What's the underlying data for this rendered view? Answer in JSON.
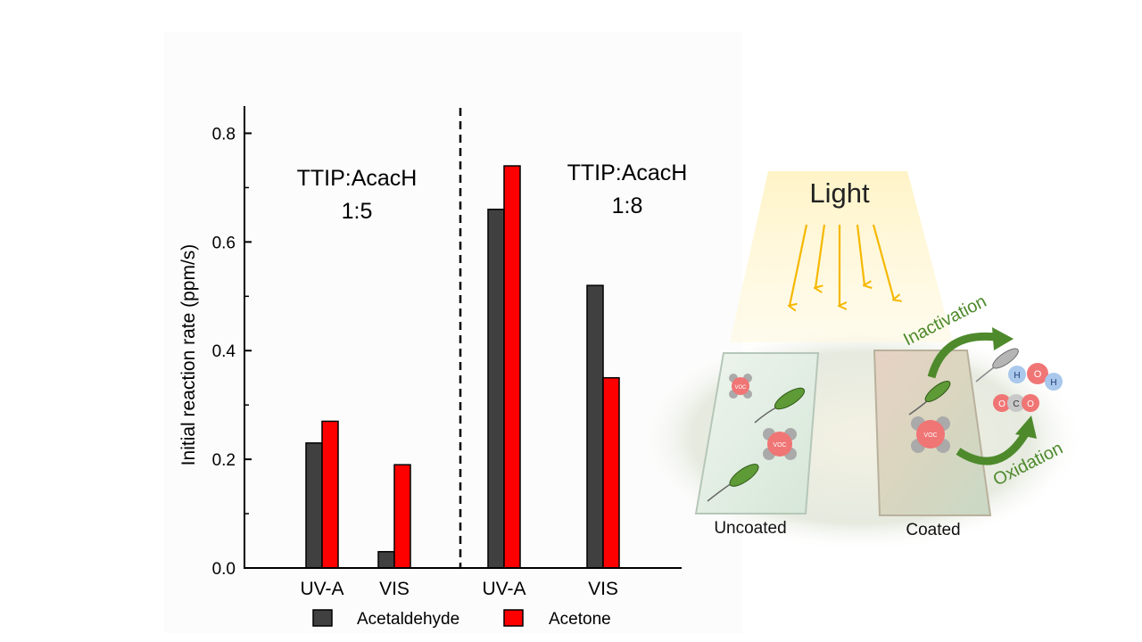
{
  "chart_data": {
    "type": "bar",
    "ylabel": "Initial reaction rate (ppm/s)",
    "ylim": [
      0,
      0.85
    ],
    "yticks": [
      "0.0",
      "0.2",
      "0.4",
      "0.6",
      "0.8"
    ],
    "ytick_values": [
      0,
      0.2,
      0.4,
      0.6,
      0.8
    ],
    "groups": [
      {
        "label": "TTIP:AcacH",
        "ratio": "1:5",
        "categories": [
          "UV-A",
          "VIS"
        ]
      },
      {
        "label": "TTIP:AcacH",
        "ratio": "1:8",
        "categories": [
          "UV-A",
          "VIS"
        ]
      }
    ],
    "categories": [
      "UV-A",
      "VIS",
      "UV-A",
      "VIS"
    ],
    "series": [
      {
        "name": "Acetaldehyde",
        "color": "#404040",
        "values": [
          0.23,
          0.03,
          0.66,
          0.52
        ]
      },
      {
        "name": "Acetone",
        "color": "#ff0000",
        "values": [
          0.27,
          0.19,
          0.74,
          0.35
        ]
      }
    ],
    "grid": false,
    "legend_position": "bottom"
  },
  "illustration": {
    "light_label": "Light",
    "uncoated_label": "Uncoated",
    "coated_label": "Coated",
    "inactivation_label": "Inactivation",
    "oxidation_label": "Oxidation",
    "voc_label": "VOC",
    "h2o": [
      "H",
      "O",
      "H"
    ],
    "co2": [
      "O",
      "C",
      "O"
    ],
    "arrow_color": "#f5b800",
    "process_color": "#4e8a2c"
  }
}
